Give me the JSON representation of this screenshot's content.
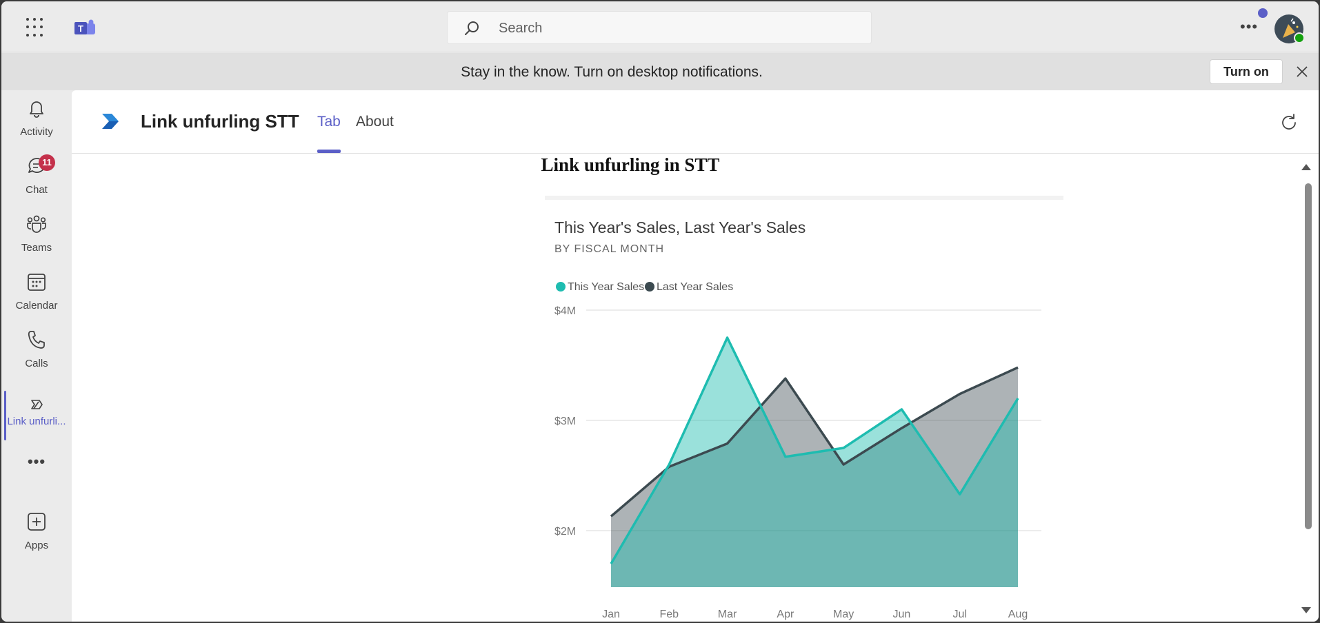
{
  "topbar": {
    "search_placeholder": "Search",
    "more_label": "•••"
  },
  "banner": {
    "text": "Stay in the know. Turn on desktop notifications.",
    "button_label": "Turn on"
  },
  "rail": {
    "items": [
      {
        "label": "Activity"
      },
      {
        "label": "Chat",
        "badge": "11"
      },
      {
        "label": "Teams"
      },
      {
        "label": "Calendar"
      },
      {
        "label": "Calls"
      },
      {
        "label": "Link unfurli..."
      },
      {
        "label": "•••"
      },
      {
        "label": "Apps"
      }
    ]
  },
  "app": {
    "title": "Link unfurling STT",
    "tabs": [
      {
        "label": "Tab"
      },
      {
        "label": "About"
      }
    ],
    "heading": "Link unfurling in STT"
  },
  "colors": {
    "accent": "#5b5fc7",
    "this_year": "#1ebcb0",
    "last_year": "#3c4a50"
  },
  "chart_data": {
    "type": "area",
    "title": "This Year's Sales, Last Year's Sales",
    "subtitle": "BY FISCAL MONTH",
    "categories": [
      "Jan",
      "Feb",
      "Mar",
      "Apr",
      "May",
      "Jun",
      "Jul",
      "Aug"
    ],
    "series": [
      {
        "name": "This Year Sales",
        "values": [
          1.7,
          2.6,
          3.75,
          2.67,
          2.75,
          3.1,
          2.33,
          3.2
        ]
      },
      {
        "name": "Last Year Sales",
        "values": [
          2.13,
          2.58,
          2.79,
          3.38,
          2.6,
          2.93,
          3.24,
          3.48
        ]
      }
    ],
    "ylim": [
      1.5,
      4.0
    ],
    "yticks": [
      2,
      3,
      4
    ],
    "ytick_labels": [
      "$2M",
      "$3M",
      "$4M"
    ],
    "legend": "top-left",
    "grid": true
  }
}
